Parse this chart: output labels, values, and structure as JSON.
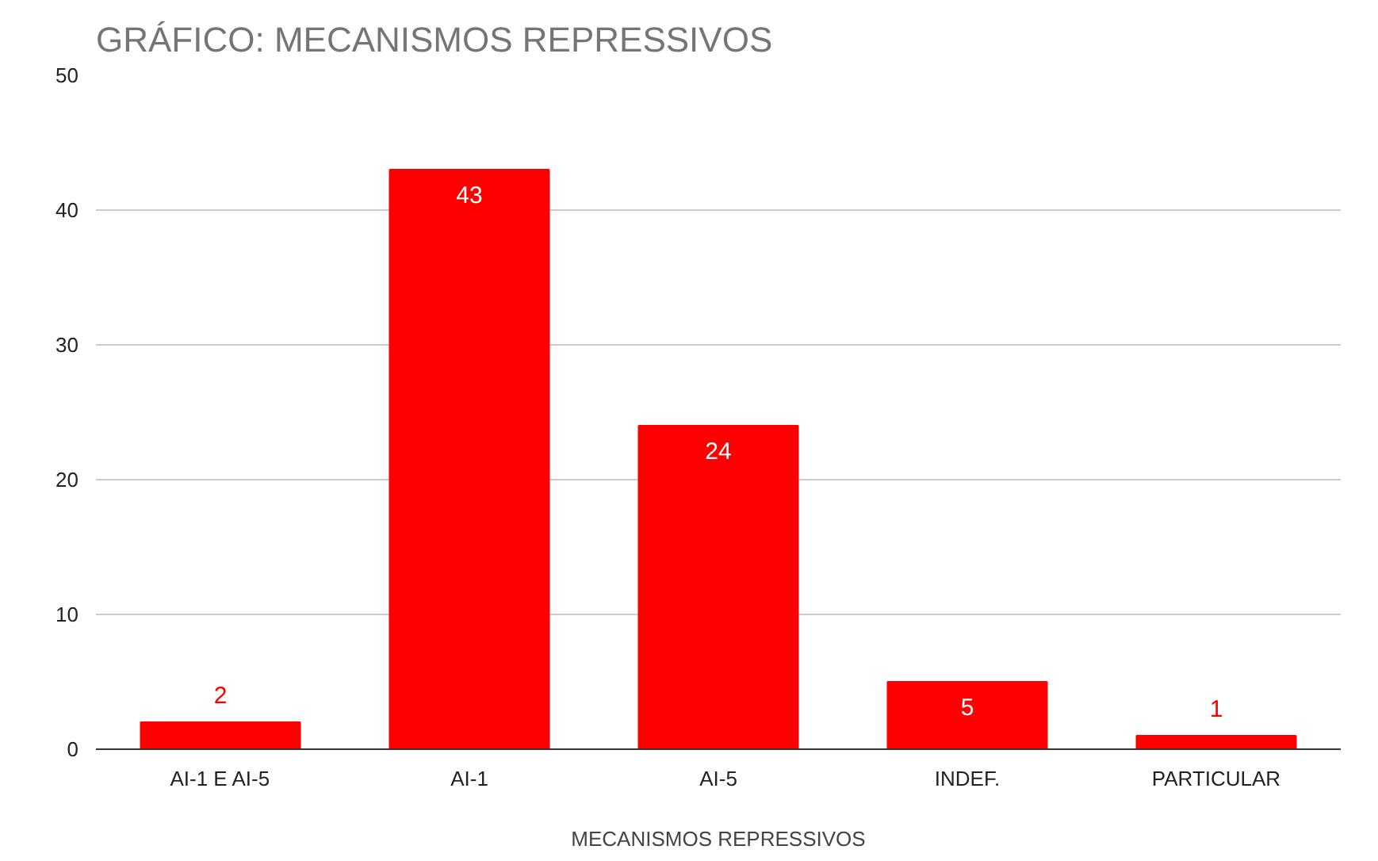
{
  "chart_data": {
    "type": "bar",
    "title": "GRÁFICO: MECANISMOS REPRESSIVOS",
    "xlabel": "MECANISMOS REPRESSIVOS",
    "categories": [
      "AI-1 E AI-5",
      "AI-1",
      "AI-5",
      "INDEF.",
      "PARTICULAR"
    ],
    "values": [
      2,
      43,
      24,
      5,
      1
    ],
    "color": "#ff0000",
    "ylim": [
      0,
      50
    ],
    "yticks": [
      0,
      10,
      20,
      30,
      40,
      50
    ],
    "grid": "y",
    "data_labels": true
  }
}
